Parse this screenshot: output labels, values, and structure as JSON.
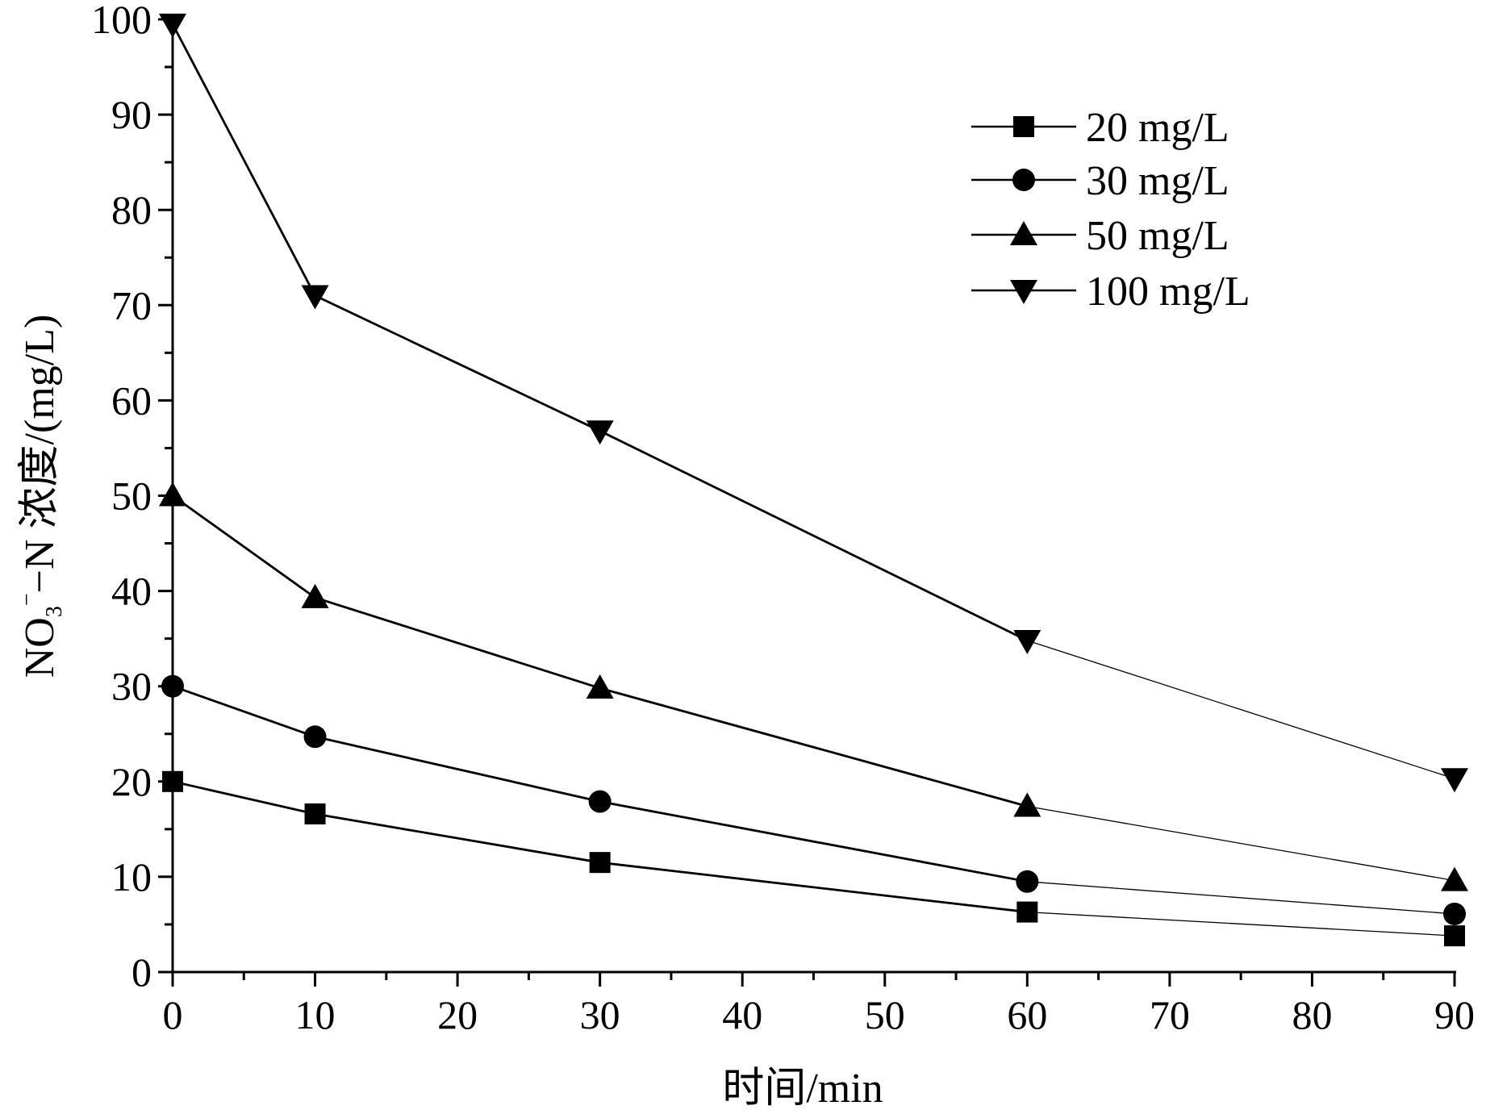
{
  "chart_data": {
    "type": "line",
    "xlabel": "时间/min",
    "ylabel_parts": {
      "main": "NO",
      "sub": "3",
      "sup": "−",
      "rest": "−N 浓度/(mg/L)"
    },
    "xlim": [
      0,
      90
    ],
    "ylim": [
      0,
      100
    ],
    "x_ticks": [
      "0",
      "10",
      "20",
      "30",
      "40",
      "50",
      "60",
      "70",
      "80",
      "90"
    ],
    "y_ticks": [
      "0",
      "10",
      "20",
      "30",
      "40",
      "50",
      "60",
      "70",
      "80",
      "90",
      "100"
    ],
    "grid": false,
    "legend_position": "top-right",
    "x": [
      0,
      10,
      30,
      60,
      90
    ],
    "series": [
      {
        "name": "20 mg/L",
        "marker": "square",
        "values": [
          20,
          16.6,
          11.5,
          6.3,
          3.8
        ]
      },
      {
        "name": "30 mg/L",
        "marker": "circle",
        "values": [
          30,
          24.7,
          17.9,
          9.5,
          6.1
        ]
      },
      {
        "name": "50 mg/L",
        "marker": "triangle-up",
        "values": [
          50,
          39.3,
          29.8,
          17.4,
          9.6
        ]
      },
      {
        "name": "100 mg/L",
        "marker": "triangle-down",
        "values": [
          99.5,
          71,
          56.8,
          34.8,
          20.3
        ]
      }
    ]
  }
}
